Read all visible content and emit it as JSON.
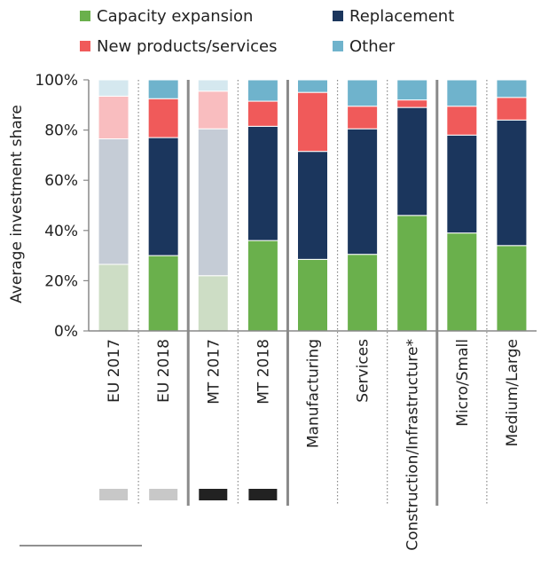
{
  "chart_data": {
    "type": "bar",
    "stacked": true,
    "ylabel": "Average investment share",
    "ylim": [
      0,
      100
    ],
    "yticks": [
      "0%",
      "20%",
      "40%",
      "60%",
      "80%",
      "100%"
    ],
    "categories": [
      "EU 2017",
      "EU 2018",
      "MT 2017",
      "MT 2018",
      "Manufacturing",
      "Services",
      "Construction/Infrastructure*",
      "Micro/Small",
      "Medium/Large"
    ],
    "series": [
      {
        "name": "Capacity expansion",
        "color": "#6ab04c",
        "values": [
          26.5,
          30,
          22,
          36,
          28.5,
          30.5,
          46,
          39,
          34
        ]
      },
      {
        "name": "Replacement",
        "color": "#1b365d",
        "values": [
          50,
          47,
          58.5,
          45.5,
          43,
          50,
          43,
          39,
          50
        ]
      },
      {
        "name": "New products/services",
        "color": "#f05a5a",
        "values": [
          17,
          15.5,
          15,
          10,
          23.5,
          9,
          3,
          11.5,
          9
        ]
      },
      {
        "name": "Other",
        "color": "#6fb3cc",
        "values": [
          6.5,
          7.5,
          4.5,
          8.5,
          5,
          10.5,
          8,
          10.5,
          7
        ]
      }
    ],
    "faded_categories": [
      0,
      2
    ],
    "faded_colors": {
      "Capacity expansion": "#cdddc5",
      "Replacement": "#c5ccd6",
      "New products/services": "#f9bdbf",
      "Other": "#d5e8ef"
    },
    "markers": [
      {
        "category": 0,
        "color": "#c8c8c8"
      },
      {
        "category": 1,
        "color": "#c8c8c8"
      },
      {
        "category": 2,
        "color": "#222222"
      },
      {
        "category": 3,
        "color": "#222222"
      }
    ],
    "separators": {
      "solid_after": [
        1,
        3,
        6
      ],
      "dotted_after": [
        0,
        2,
        4,
        5,
        7
      ]
    },
    "legend_position": "top",
    "grid": false
  }
}
